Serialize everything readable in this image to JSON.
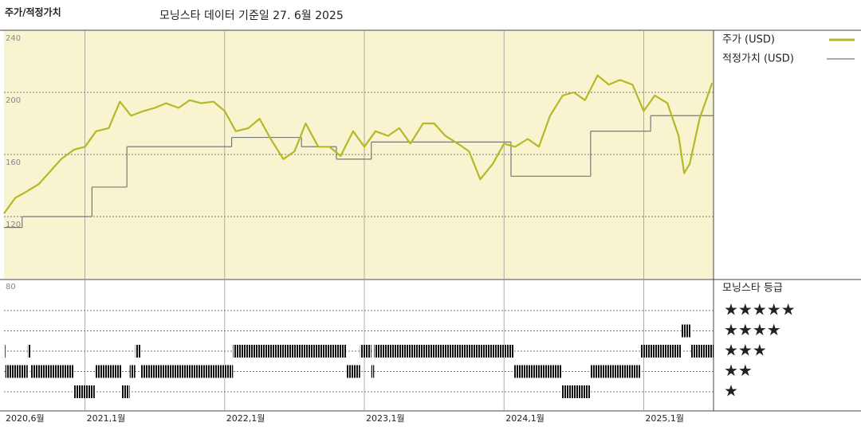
{
  "chart_data": {
    "type": "line",
    "title": "주가/적정가치",
    "subtitle": "모닝스타 데이터 기준일 27. 6월 2025",
    "x": [
      2020.42,
      2020.5,
      2020.58,
      2020.67,
      2020.75,
      2020.83,
      2020.92,
      2021.0,
      2021.08,
      2021.17,
      2021.25,
      2021.33,
      2021.42,
      2021.5,
      2021.58,
      2021.67,
      2021.75,
      2021.83,
      2021.92,
      2022.0,
      2022.08,
      2022.17,
      2022.25,
      2022.33,
      2022.42,
      2022.5,
      2022.58,
      2022.67,
      2022.75,
      2022.83,
      2022.92,
      2023.0,
      2023.08,
      2023.17,
      2023.25,
      2023.33,
      2023.42,
      2023.5,
      2023.58,
      2023.67,
      2023.75,
      2023.83,
      2023.92,
      2024.0,
      2024.08,
      2024.17,
      2024.25,
      2024.33,
      2024.42,
      2024.5,
      2024.58,
      2024.67,
      2024.75,
      2024.83,
      2024.92,
      2025.0,
      2025.08,
      2025.17,
      2025.25,
      2025.29,
      2025.33,
      2025.4,
      2025.49
    ],
    "series": [
      {
        "name": "주가 (USD)",
        "color": "#b5b827",
        "values": [
          122,
          132,
          136,
          141,
          149,
          157,
          163,
          165,
          175,
          177,
          194,
          185,
          188,
          190,
          193,
          190,
          195,
          193,
          194,
          188,
          175,
          177,
          183,
          170,
          157,
          162,
          180,
          165,
          165,
          159,
          175,
          165,
          175,
          172,
          177,
          167,
          180,
          180,
          172,
          167,
          162,
          144,
          154,
          167,
          165,
          170,
          165,
          185,
          198,
          200,
          195,
          211,
          205,
          208,
          205,
          188,
          198,
          193,
          172,
          148,
          154,
          183,
          206
        ]
      },
      {
        "name": "적정가치 (USD)",
        "color": "#777777",
        "x": [
          2020.42,
          2020.55,
          2021.05,
          2021.3,
          2022.05,
          2022.55,
          2022.8,
          2023.05,
          2024.05,
          2024.62,
          2025.05
        ],
        "values": [
          113,
          120,
          139,
          165,
          171,
          165,
          157,
          168,
          146,
          175,
          185
        ]
      }
    ],
    "xlim": [
      2020.42,
      2025.5
    ],
    "xticks": [
      {
        "value": 2020.42,
        "label": "2020,6월"
      },
      {
        "value": 2021,
        "label": "2021,1월"
      },
      {
        "value": 2022,
        "label": "2022,1월"
      },
      {
        "value": 2023,
        "label": "2023,1월"
      },
      {
        "value": 2024,
        "label": "2024,1월"
      },
      {
        "value": 2025,
        "label": "2025,1월"
      }
    ],
    "ylim": [
      80,
      240
    ],
    "yticks": [
      80,
      120,
      160,
      200,
      240
    ],
    "grid": true,
    "rating_title": "모닝스타 등급",
    "rating_labels": [
      "★★★★★",
      "★★★★",
      "★★★",
      "★★",
      "★"
    ],
    "ratings": {
      "x": [
        2020.42,
        2020.43,
        2020.59,
        2020.61,
        2020.92,
        2021.07,
        2021.26,
        2021.32,
        2021.36,
        2021.4,
        2022.06,
        2022.87,
        2022.97,
        2023.05,
        2023.07,
        2024.07,
        2024.41,
        2024.62,
        2024.98,
        2025.27,
        2025.34
      ],
      "values": [
        3,
        2,
        3,
        2,
        1,
        2,
        1,
        2,
        3,
        2,
        3,
        2,
        3,
        2,
        3,
        2,
        1,
        2,
        3,
        4,
        3
      ]
    }
  }
}
